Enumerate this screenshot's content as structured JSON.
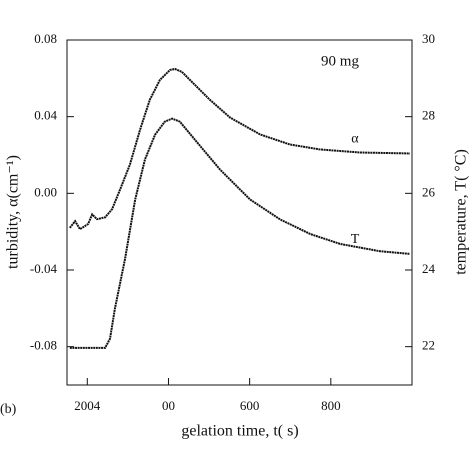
{
  "chart_data": {
    "type": "line",
    "annotations": [
      "90 mg",
      "(b)"
    ],
    "xlabel": "gelation time, t( s)",
    "ylabel": "turbidity, α(cm⁻¹)",
    "y2label": "temperature, T( °C)",
    "xlim": [
      150,
      1000
    ],
    "xticks": [
      {
        "value": 200,
        "label": "2004"
      },
      {
        "value": 400,
        "label": "00"
      },
      600,
      800
    ],
    "ylim": [
      -0.1,
      0.08
    ],
    "yticks": [
      0.08,
      0.04,
      {
        "value": 0,
        "label": "0.00"
      },
      -0.04,
      -0.08
    ],
    "y2lim": [
      21,
      30
    ],
    "y2ticks": [
      30,
      28,
      26,
      24,
      22
    ],
    "series": [
      {
        "name": "α",
        "color": "#111111",
        "x": [
          157,
          170,
          182,
          202,
          212,
          224,
          244,
          261,
          281,
          305,
          330,
          354,
          379,
          404,
          416,
          433,
          465,
          502,
          552,
          626,
          699,
          773,
          872,
          995
        ],
        "values": [
          -0.018,
          -0.0145,
          -0.0187,
          -0.016,
          -0.011,
          -0.0135,
          -0.0125,
          -0.0083,
          0.0021,
          0.015,
          0.0332,
          0.0488,
          0.0592,
          0.0644,
          0.0649,
          0.0634,
          0.0566,
          0.0488,
          0.0395,
          0.0307,
          0.0255,
          0.0229,
          0.0213,
          0.0208
        ]
      },
      {
        "name": "T",
        "color": "#111111",
        "axis": "y2",
        "x": [
          157,
          244,
          256,
          268,
          293,
          318,
          342,
          367,
          391,
          409,
          428,
          465,
          527,
          601,
          675,
          749,
          823,
          921,
          995
        ],
        "values": [
          21.97,
          21.97,
          22.21,
          22.99,
          24.29,
          25.84,
          26.88,
          27.53,
          27.87,
          27.95,
          27.87,
          27.4,
          26.62,
          25.84,
          25.32,
          24.94,
          24.68,
          24.49,
          24.42
        ]
      }
    ]
  }
}
